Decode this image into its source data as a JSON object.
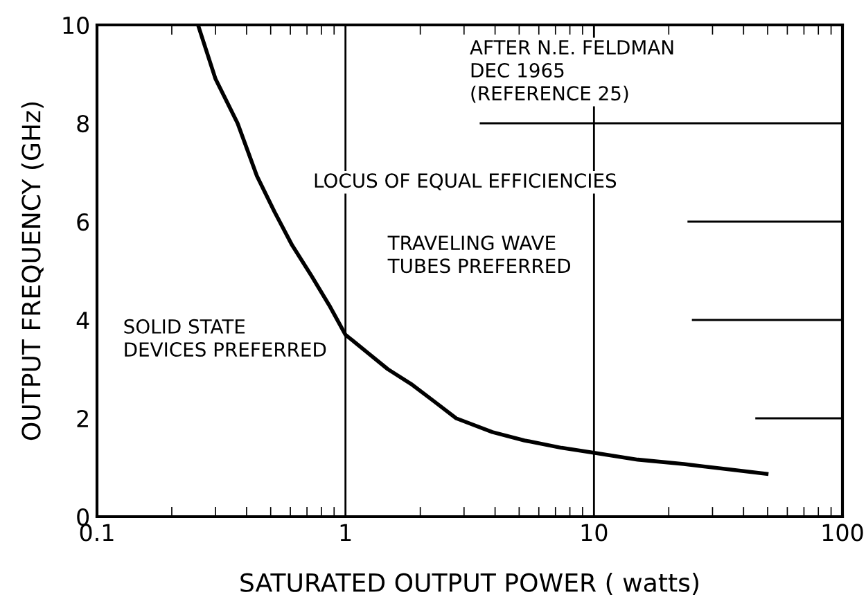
{
  "chart_data": {
    "type": "line",
    "xlabel": "SATURATED OUTPUT POWER ( watts)",
    "ylabel": "OUTPUT FREQUENCY (GHz)",
    "log": "x",
    "ref_lines": [
      {
        "axis": "x",
        "value": 1
      },
      {
        "axis": "x",
        "value": 10
      }
    ],
    "marker": "none",
    "line_style": "solid",
    "xlim": [
      0.1,
      100
    ],
    "xticks": [
      0.1,
      1,
      10,
      100
    ],
    "ylim": [
      0,
      10
    ],
    "yticks": [
      0,
      2,
      4,
      6,
      8,
      10
    ],
    "series": [
      {
        "color": "#000000",
        "x": [
          0.255,
          0.3,
          0.368,
          0.44,
          0.518,
          0.61,
          0.729,
          0.86,
          1.0,
          1.48,
          1.835,
          2.28,
          2.79,
          3.9,
          5.25,
          7.4,
          10,
          15,
          23,
          35,
          49.5
        ],
        "values": [
          10,
          8.9,
          8.0,
          6.93,
          6.2,
          5.52,
          4.9,
          4.3,
          3.7,
          3.0,
          2.7,
          2.34,
          2.0,
          1.72,
          1.55,
          1.4,
          1.3,
          1.16,
          1.07,
          0.96,
          0.87
        ]
      },
      {
        "color": "#000000",
        "x": [
          3.5,
          100
        ],
        "values": [
          8,
          8
        ]
      },
      {
        "color": "#000000",
        "x": [
          24,
          100
        ],
        "values": [
          6,
          6
        ]
      },
      {
        "color": "#000000",
        "x": [
          25,
          100
        ],
        "values": [
          4,
          4
        ]
      },
      {
        "color": "#000000",
        "x": [
          45,
          100
        ],
        "values": [
          2,
          2
        ]
      }
    ],
    "annotations": [
      "AFTER N.E. FELDMAN\nDEC 1965\n(REFERENCE 25)",
      "LOCUS OF EQUAL EFFICIENCIES",
      "TRAVELING WAVE\nTUBES PREFERRED",
      "SOLID STATE\nDEVICES PREFERRED"
    ]
  }
}
